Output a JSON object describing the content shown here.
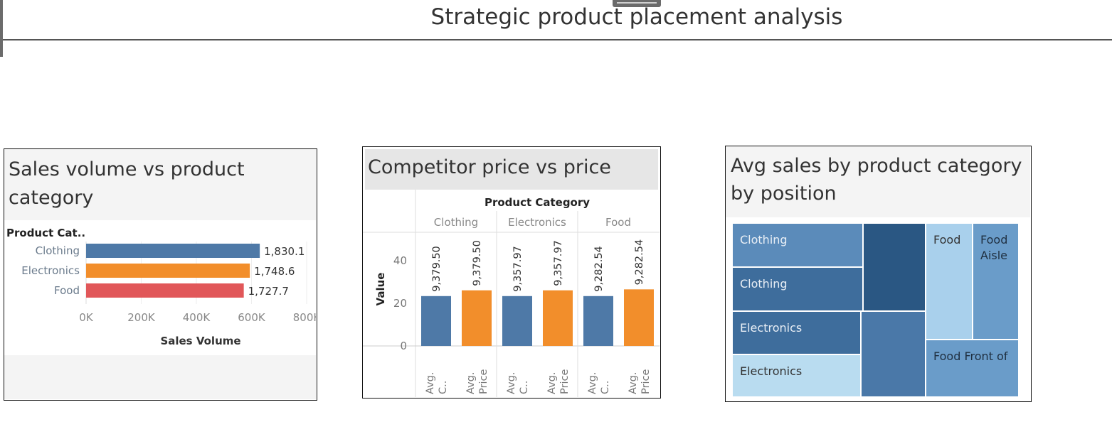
{
  "dashboard": {
    "title": "Strategic product placement analysis"
  },
  "colors": {
    "blue": "#4e79a7",
    "orange": "#f28e2b",
    "red": "#e15759",
    "tm_dark": "#2a5783",
    "tm_mid": "#3e6d9c",
    "tm_mid2": "#4a78a8",
    "tm_light": "#a9d0ec",
    "tm_lighter": "#b9dcf0",
    "tm_medlight": "#6a9cc9"
  },
  "chart_data": [
    {
      "type": "bar",
      "title": "Sales volume vs product category",
      "row_header": "Product Cat..",
      "categories": [
        "Clothing",
        "Electronics",
        "Food"
      ],
      "values": [
        1830.1,
        1748.6,
        1727.7
      ],
      "value_labels": [
        "1,830.1",
        "1,748.6",
        "1,727.7"
      ],
      "bar_lengths": [
        630000,
        594000,
        572000
      ],
      "xlabel": "Sales Volume",
      "xticks": [
        "0K",
        "200K",
        "400K",
        "600K",
        "800K"
      ],
      "xlim": [
        0,
        800000
      ],
      "colors": [
        "#4e79a7",
        "#f28e2b",
        "#e15759"
      ]
    },
    {
      "type": "bar",
      "title": "Competitor price vs price",
      "column_header": "Product Category",
      "categories": [
        "Clothing",
        "Electronics",
        "Food"
      ],
      "measures": [
        "Avg. C..",
        "Avg. Price"
      ],
      "series": [
        {
          "name": "Avg. C..",
          "values": [
            9379.5,
            9357.97,
            9282.54
          ],
          "labels": [
            "9,379.50",
            "9,357.97",
            "9,282.54"
          ],
          "bar_heights": [
            26,
            26,
            26
          ]
        },
        {
          "name": "Avg. Price",
          "values": [
            9379.5,
            9357.97,
            9282.54
          ],
          "labels": [
            "9,379.50",
            "9,357.97",
            "9,282.54"
          ],
          "bar_heights": [
            29,
            29,
            29.5
          ]
        }
      ],
      "ylabel": "Value",
      "yticks": [
        "0",
        "20",
        "40"
      ],
      "ylim": [
        0,
        55
      ]
    },
    {
      "type": "treemap",
      "title": "Avg sales by product category by position",
      "cells": [
        {
          "label": "Clothing",
          "color": "#5b8bba"
        },
        {
          "label": "Clothing",
          "color": "#3e6d9c"
        },
        {
          "label": "",
          "color": "#2a5783"
        },
        {
          "label": "Electronics",
          "color": "#3e6d9c"
        },
        {
          "label": "Electronics",
          "color": "#b9dcf0"
        },
        {
          "label": "",
          "color": "#4a78a8"
        },
        {
          "label": "Food",
          "color": "#a9d0ec"
        },
        {
          "label": "Food Aisle",
          "color": "#6a9cc9"
        },
        {
          "label": "Food Front of",
          "color": "#6a9cc9"
        }
      ]
    }
  ]
}
